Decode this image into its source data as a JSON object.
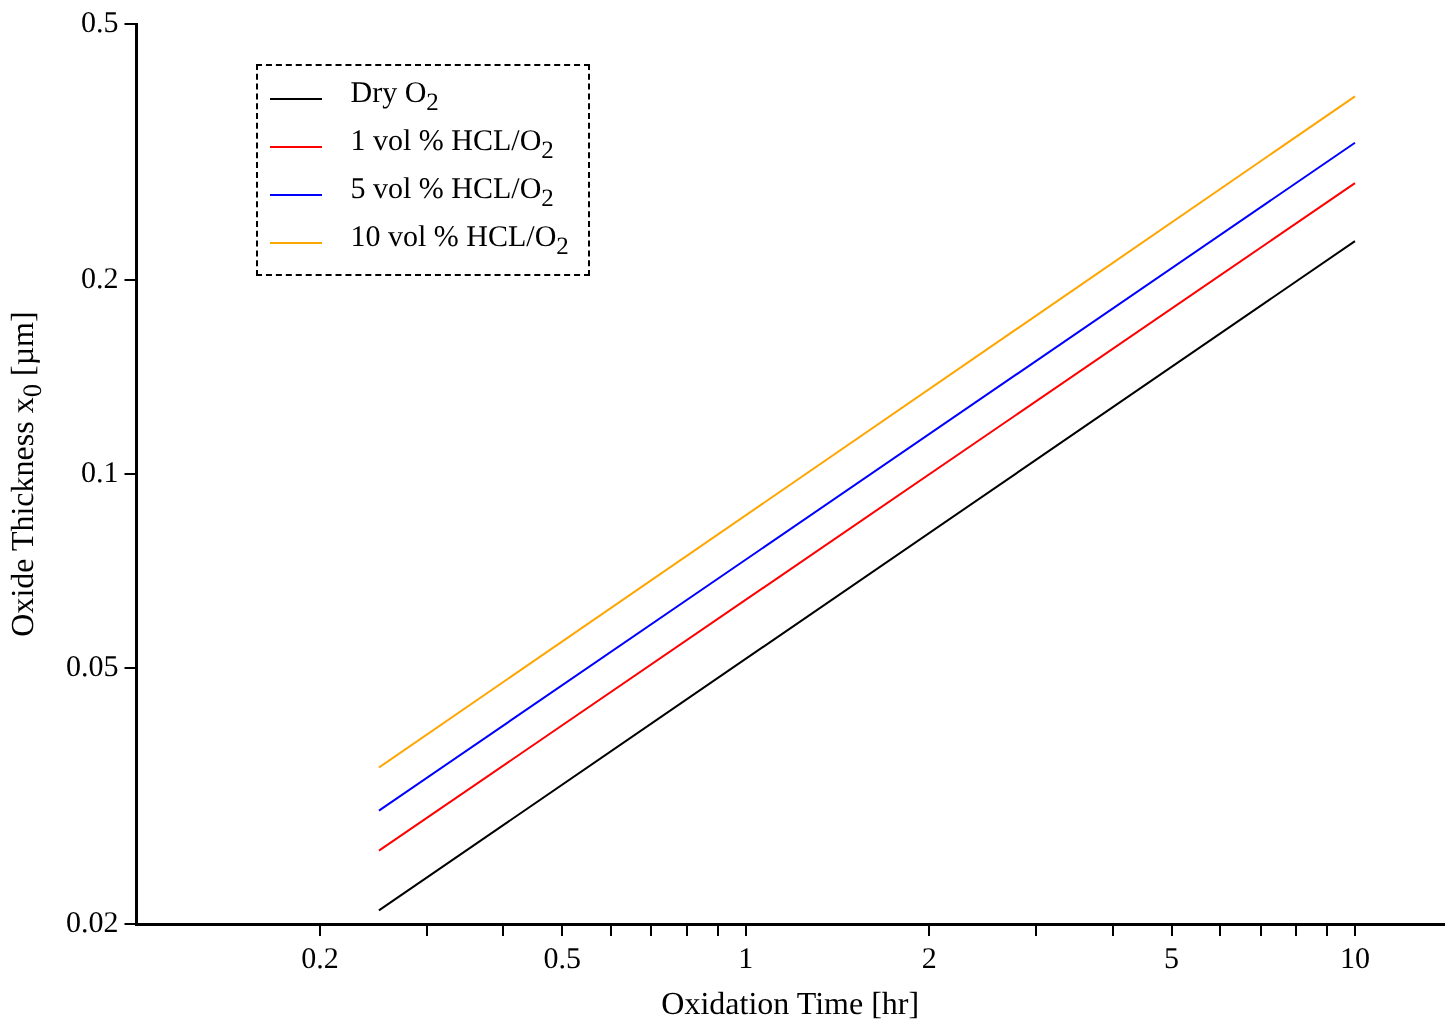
{
  "chart_data": {
    "type": "line",
    "xlabel": "Oxidation Time [hr]",
    "ylabel": "Oxide Thickness x$_{0}$ [µm]",
    "log": "xy",
    "grid": false,
    "legend": "top left",
    "marker": "none",
    "line_style": "solid",
    "x": [
      0.25,
      10
    ],
    "xlim": [
      0.1,
      14
    ],
    "xticks": [
      0.2,
      {
        "value": 0.3,
        "label": null
      },
      {
        "value": 0.4,
        "label": null
      },
      0.5,
      {
        "value": 0.6,
        "label": null
      },
      {
        "value": 0.7,
        "label": null
      },
      {
        "value": 0.8,
        "label": null
      },
      {
        "value": 0.9,
        "label": null
      },
      1,
      2,
      {
        "value": 3,
        "label": null
      },
      {
        "value": 4,
        "label": null
      },
      5,
      {
        "value": 6,
        "label": null
      },
      {
        "value": 7,
        "label": null
      },
      {
        "value": 8,
        "label": null
      },
      {
        "value": 9,
        "label": null
      },
      10
    ],
    "ylim": [
      0.02,
      0.5
    ],
    "yticks": [
      0.02,
      0.05,
      0.1,
      0.2,
      0.5
    ],
    "series": [
      {
        "name": "Dry O$_{2}$",
        "color": "#000000",
        "values": [
          0.021,
          0.23
        ]
      },
      {
        "name": "1 vol % HCL/O$_{2}$",
        "color": "#ff0000",
        "values": [
          0.026,
          0.283
        ]
      },
      {
        "name": "5 vol % HCL/O$_{2}$",
        "color": "#0000ff",
        "values": [
          0.03,
          0.327
        ]
      },
      {
        "name": "10 vol % HCL/O$_{2}$",
        "color": "#ffa500",
        "values": [
          0.035,
          0.386
        ]
      }
    ]
  }
}
